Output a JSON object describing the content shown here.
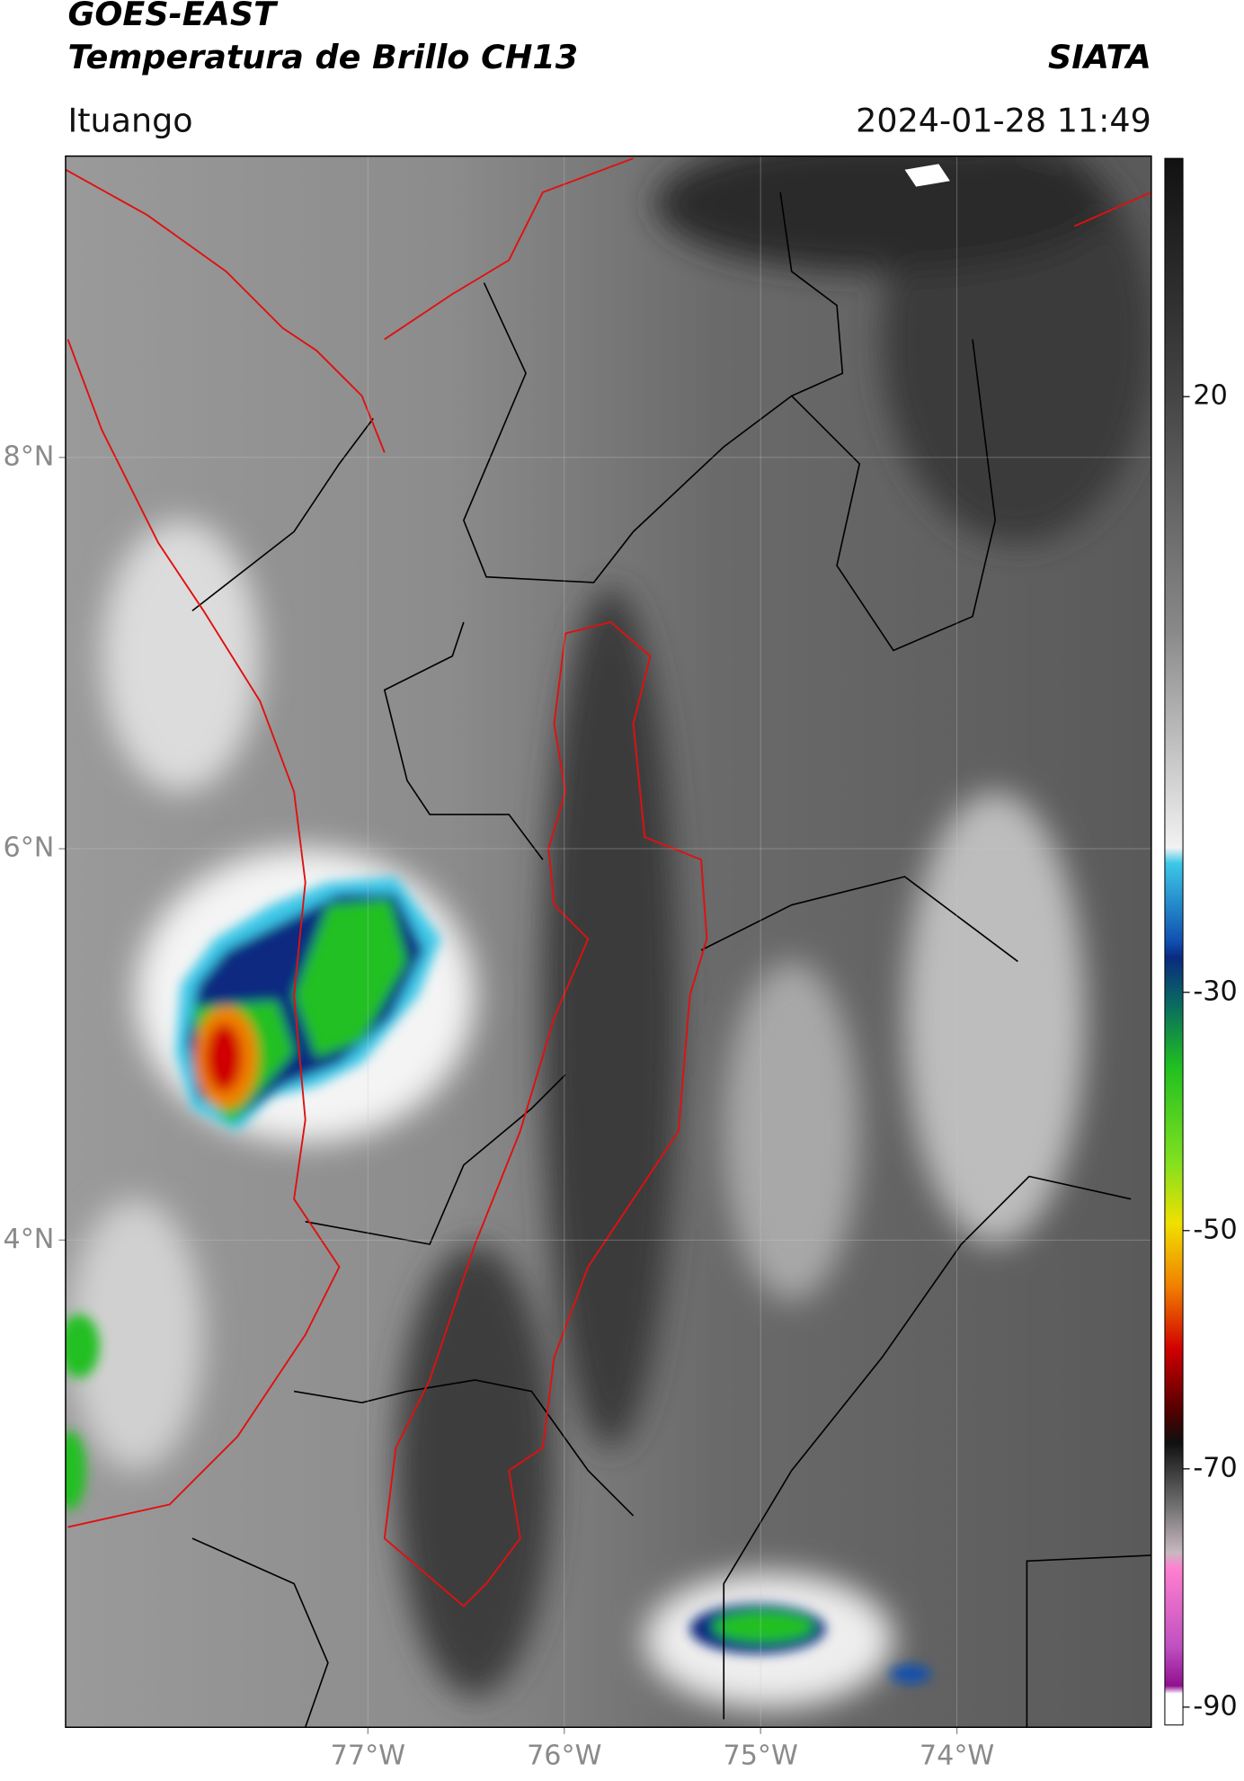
{
  "header": {
    "title": "GOES-EAST",
    "subtitle": "Temperatura de Brillo CH13",
    "source": "SIATA",
    "location": "Ituango",
    "datetime": "2024-01-28 11:49"
  },
  "map": {
    "type": "map",
    "xlim": [
      -78.54,
      -73.01
    ],
    "ylim": [
      1.51,
      9.54
    ],
    "xticks": [
      {
        "value": -77,
        "label": "77°W"
      },
      {
        "value": -76,
        "label": "76°W"
      },
      {
        "value": -75,
        "label": "75°W"
      },
      {
        "value": -74,
        "label": "74°W"
      }
    ],
    "yticks": [
      {
        "value": 8,
        "label": "8°N"
      },
      {
        "value": 6,
        "label": "6°N"
      },
      {
        "value": 4,
        "label": "4°N"
      }
    ],
    "grid": true
  },
  "colorbar": {
    "clim": [
      -91.5,
      40
    ],
    "ticks": [
      20,
      -30,
      -50,
      -70,
      -90
    ]
  }
}
